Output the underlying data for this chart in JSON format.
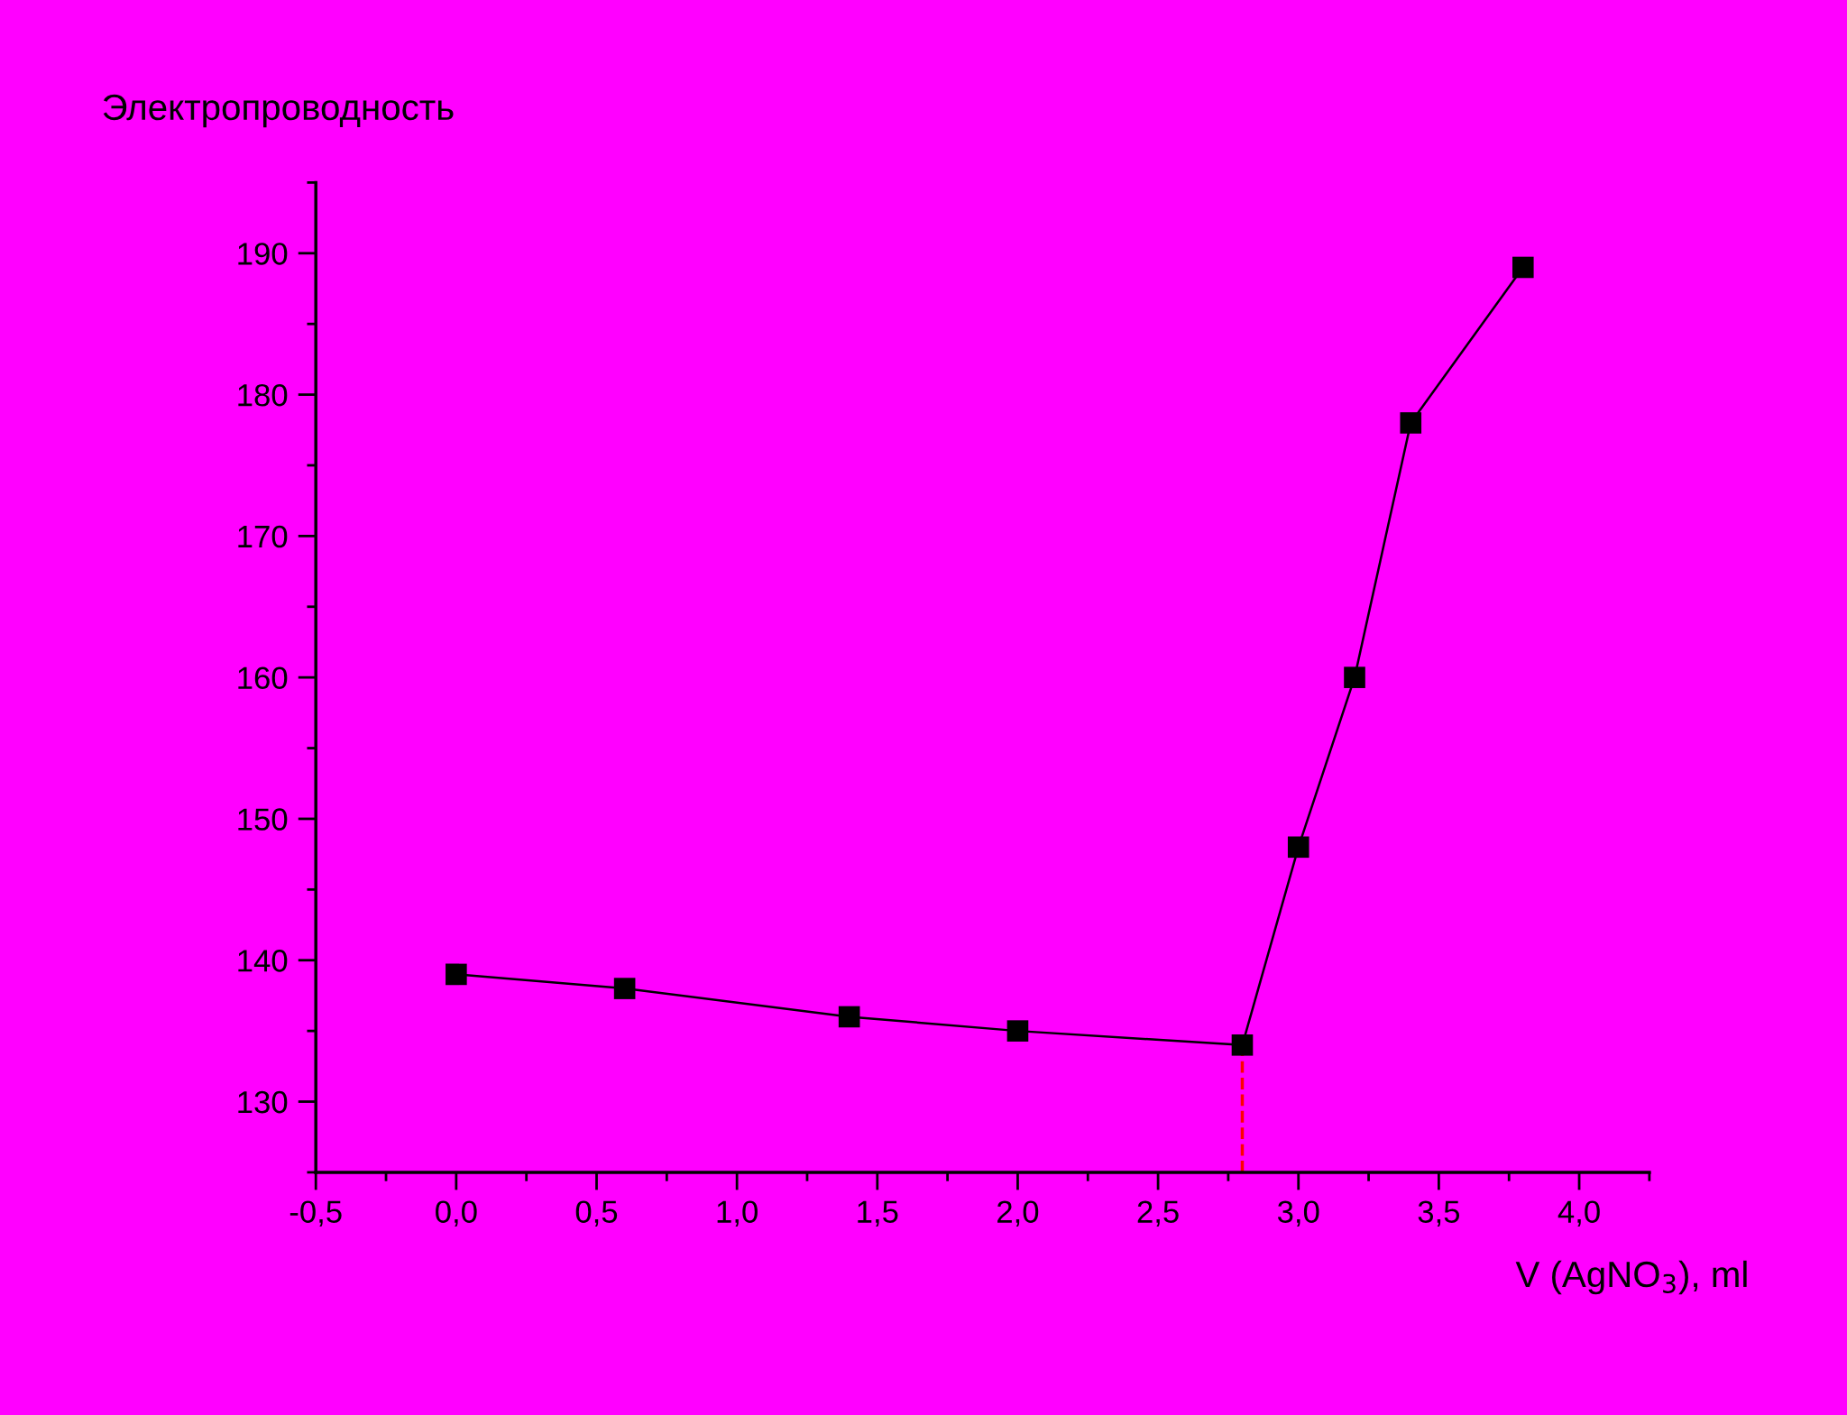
{
  "chart_data": {
    "type": "line",
    "xlabel": "V (AgNO$_{3}$), ml",
    "ylabel": "Электропроводность",
    "x": [
      0.0,
      0.6,
      1.4,
      2.0,
      2.8,
      3.0,
      3.2,
      3.4,
      3.8
    ],
    "series": [
      {
        "color": "#000000",
        "values": [
          139,
          138,
          136,
          135,
          134,
          148,
          160,
          178,
          189
        ]
      }
    ],
    "marker": "square",
    "line_style": "solid",
    "grid": false,
    "legend": false,
    "xlim": [
      -0.5,
      4.25
    ],
    "ylim": [
      125,
      195
    ],
    "xticks": [
      {
        "value": -0.5,
        "label": "-0,5"
      },
      {
        "value": 0.0,
        "label": "0,0"
      },
      {
        "value": 0.5,
        "label": "0,5"
      },
      {
        "value": 1.0,
        "label": "1,0"
      },
      {
        "value": 1.5,
        "label": "1,5"
      },
      {
        "value": 2.0,
        "label": "2,0"
      },
      {
        "value": 2.5,
        "label": "2,5"
      },
      {
        "value": 3.0,
        "label": "3,0"
      },
      {
        "value": 3.5,
        "label": "3,5"
      },
      {
        "value": 4.0,
        "label": "4,0"
      }
    ],
    "yticks": [
      130,
      140,
      150,
      160,
      170,
      180,
      190
    ],
    "ref_lines": [
      {
        "axis": "x",
        "value": 2.8,
        "label": null,
        "color": "#ff0000",
        "line_style": "dashed"
      }
    ]
  }
}
